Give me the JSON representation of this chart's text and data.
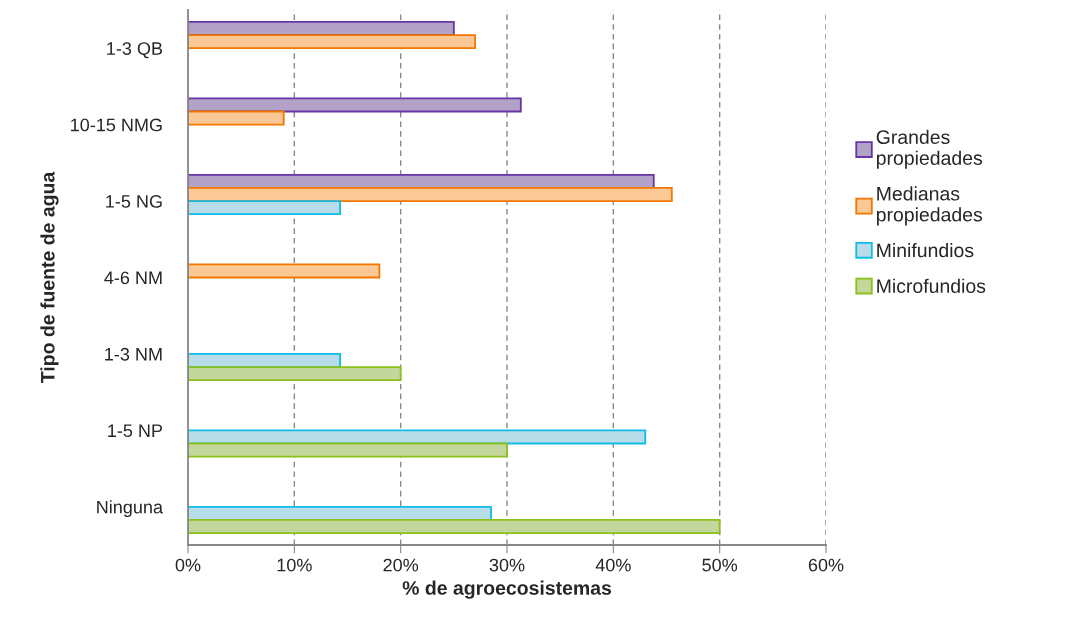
{
  "chart_data": {
    "type": "bar",
    "orientation": "horizontal",
    "xlabel": "% de agroecosistemas",
    "ylabel": "Tipo de fuente de agua",
    "categories": [
      "1-3 QB",
      "10-15 NMG",
      "1-5 NG",
      "4-6 NM",
      "1-3 NM",
      "1-5 NP",
      "Ninguna"
    ],
    "series": [
      {
        "name": "Grandes propiedades",
        "color": "#b3a2c7",
        "values": [
          25.0,
          31.3,
          43.8,
          null,
          null,
          null,
          null
        ]
      },
      {
        "name": "Medianas propiedades",
        "color": "#fcc895",
        "values": [
          27.0,
          9.0,
          45.5,
          18.0,
          null,
          null,
          null
        ]
      },
      {
        "name": "Minifundios",
        "color": "#b7dee8",
        "values": [
          null,
          null,
          14.3,
          null,
          14.3,
          43.0,
          28.5
        ]
      },
      {
        "name": "Microfundios",
        "color": "#c3d69b",
        "values": [
          null,
          null,
          null,
          null,
          20.0,
          30.0,
          50.0
        ]
      }
    ],
    "xlim": [
      0,
      60
    ],
    "xticks": [
      {
        "value": 0,
        "label": "0%"
      },
      {
        "value": 10,
        "label": "10%"
      },
      {
        "value": 20,
        "label": "20%"
      },
      {
        "value": 30,
        "label": "30%"
      },
      {
        "value": 40,
        "label": "40%"
      },
      {
        "value": 50,
        "label": "50%"
      },
      {
        "value": 60,
        "label": "60%"
      }
    ],
    "grid": "x",
    "legend": "right"
  }
}
